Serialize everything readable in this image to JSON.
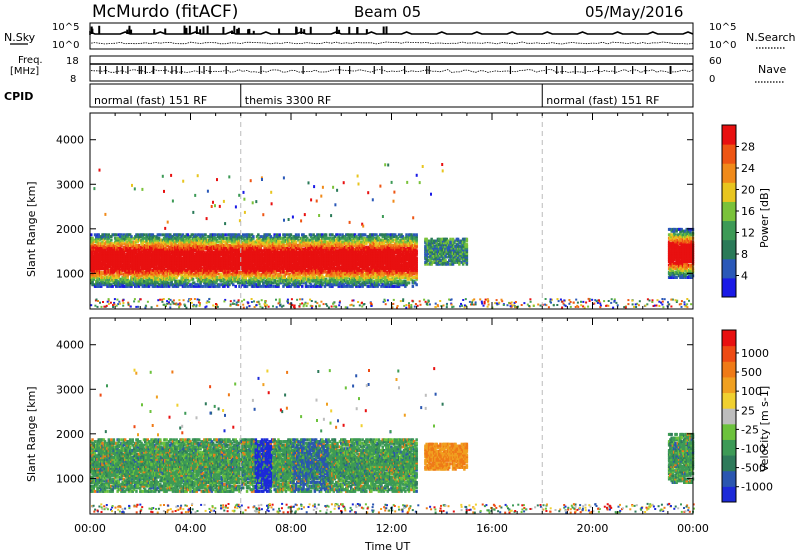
{
  "header": {
    "station": "McMurdo (fitACF)",
    "beam": "Beam 05",
    "date": "05/May/2016"
  },
  "top_panels": {
    "nsky_label": "N.Sky",
    "nsearch_label": "N.Search",
    "freq_label_line1": "Freq.",
    "freq_label_line2": "[MHz]",
    "nave_label": "Nave",
    "cpid_label": "CPID",
    "left_ticks_count": [
      "10^5",
      "10^0"
    ],
    "right_ticks_count": [
      "10^5",
      "10^0"
    ],
    "left_ticks_freq": [
      "18",
      "8"
    ],
    "right_ticks_nave": [
      "60",
      "0"
    ],
    "cpid_segments": [
      {
        "label": "normal (fast) 151 RF",
        "start_hour": 0,
        "end_hour": 6
      },
      {
        "label": "themis 3300 RF",
        "start_hour": 6,
        "end_hour": 18
      },
      {
        "label": "normal (fast) 151 RF",
        "start_hour": 18,
        "end_hour": 24
      }
    ]
  },
  "chart_data": [
    {
      "type": "heatmap",
      "name": "power",
      "xlabel": "",
      "ylabel": "Slant Range [km]",
      "xlim_hours": [
        0,
        24
      ],
      "ylim": [
        200,
        4600
      ],
      "yticks": [
        1000,
        2000,
        3000,
        4000
      ],
      "colorbar": {
        "label": "Power [dB]",
        "tick_labels": [
          "4",
          "8",
          "12",
          "16",
          "20",
          "24",
          "28"
        ],
        "colors": [
          "#1a1ae6",
          "#2a58b8",
          "#2a7a58",
          "#3d9a56",
          "#7ac23a",
          "#e8c51f",
          "#f08a1a",
          "#ee5513",
          "#e81010"
        ]
      },
      "echo_regions": [
        {
          "t0": 0.0,
          "t1": 13.0,
          "r0": 700,
          "r1": 1900,
          "level": "high"
        },
        {
          "t0": 13.3,
          "t1": 15.0,
          "r0": 1200,
          "r1": 1800,
          "level": "low"
        },
        {
          "t0": 23.0,
          "t1": 24.0,
          "r0": 900,
          "r1": 2000,
          "level": "high"
        }
      ]
    },
    {
      "type": "heatmap",
      "name": "velocity",
      "xlabel": "Time UT",
      "ylabel": "Slant Range [km]",
      "xlim_hours": [
        0,
        24
      ],
      "ylim": [
        200,
        4600
      ],
      "yticks": [
        1000,
        2000,
        3000,
        4000
      ],
      "xticks": [
        "00:00",
        "04:00",
        "08:00",
        "12:00",
        "16:00",
        "20:00",
        "00:00"
      ],
      "colorbar": {
        "label": "Velocity [m s-1]",
        "tick_labels": [
          "1000",
          "500",
          "100",
          "25",
          "-25",
          "-100",
          "-500",
          "-1000"
        ],
        "colors": [
          "#1c2ad8",
          "#2a56b0",
          "#2e7a5a",
          "#3d9a56",
          "#6cc23c",
          "#bdbdbd",
          "#f0d030",
          "#f0a020",
          "#ef7a17",
          "#ee4a13",
          "#e81010"
        ]
      },
      "echo_regions": [
        {
          "t0": 0.0,
          "t1": 13.0,
          "r0": 700,
          "r1": 1900,
          "level": "mixed"
        },
        {
          "t0": 13.3,
          "t1": 15.0,
          "r0": 1200,
          "r1": 1800,
          "level": "orange"
        },
        {
          "t0": 23.0,
          "t1": 24.0,
          "r0": 900,
          "r1": 2000,
          "level": "mixed"
        }
      ]
    }
  ]
}
